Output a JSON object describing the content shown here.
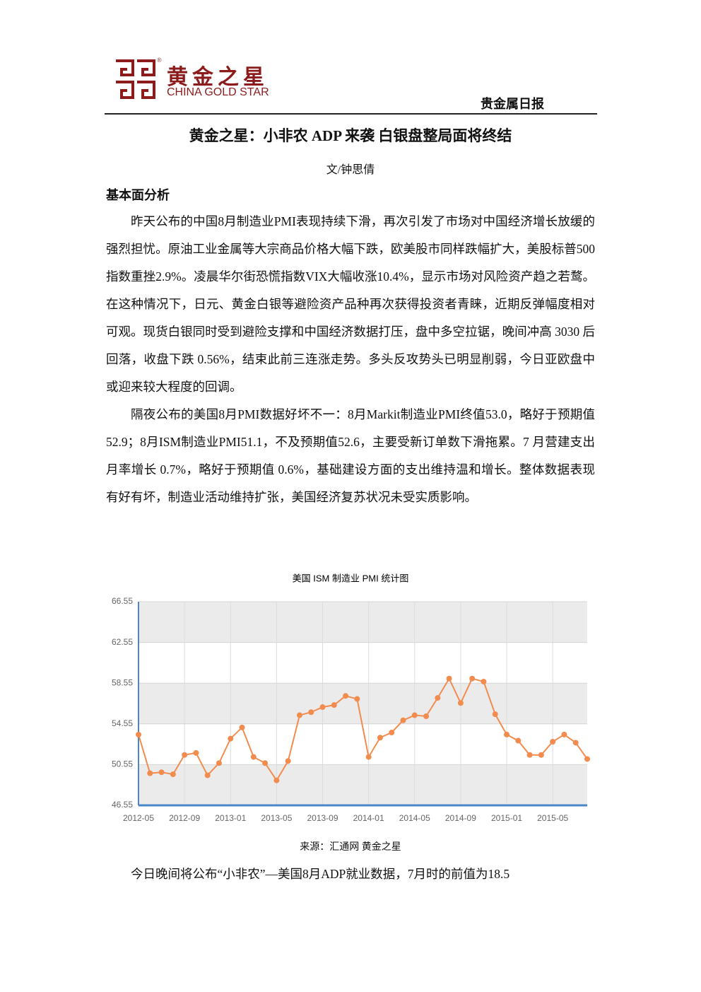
{
  "header": {
    "logo_cn": "黄金之星",
    "logo_reg": "®",
    "logo_en": "CHINA GOLD STAR",
    "report_type": "贵金属日报"
  },
  "article": {
    "title": "黄金之星：小非农 ADP 来袭 白银盘整局面将终结",
    "author": "文/钟思倩",
    "section_heading": "基本面分析",
    "paragraphs": [
      "昨天公布的中国8月制造业PMI表现持续下滑，再次引发了市场对中国经济增长放缓的强烈担忧。原油工业金属等大宗商品价格大幅下跌，欧美股市同样跌幅扩大，美股标普500指数重挫2.9%。凌晨华尔街恐慌指数VIX大幅收涨10.4%，显示市场对风险资产趋之若鹜。在这种情况下，日元、黄金白银等避险资产品种再次获得投资者青睐，近期反弹幅度相对可观。现货白银同时受到避险支撑和中国经济数据打压，盘中多空拉锯，晚间冲高 3030 后回落，收盘下跌 0.56%，结束此前三连涨走势。多头反攻势头已明显削弱，今日亚欧盘中或迎来较大程度的回调。",
      "隔夜公布的美国8月PMI数据好坏不一：8月Markit制造业PMI终值53.0，略好于预期值52.9；8月ISM制造业PMI51.1，不及预期值52.6，主要受新订单数下滑拖累。7 月营建支出月率增长 0.7%，略好于预期值 0.6%，基础建设方面的支出维持温和增长。整体数据表现有好有坏，制造业活动维持扩张，美国经济复苏状况未受实质影响。"
    ],
    "last_paragraph": "今日晚间将公布“小非农”—美国8月ADP就业数据，7月时的前值为18.5"
  },
  "chart_data": {
    "type": "line",
    "title": "美国 ISM 制造业 PMI 统计图",
    "categories": [
      "2012-05",
      null,
      null,
      null,
      "2012-09",
      null,
      null,
      null,
      "2013-01",
      null,
      null,
      null,
      "2013-05",
      null,
      null,
      null,
      "2013-09",
      null,
      null,
      null,
      "2014-01",
      null,
      null,
      null,
      "2014-05",
      null,
      null,
      null,
      "2014-09",
      null,
      null,
      null,
      "2015-01",
      null,
      null,
      null,
      "2015-05",
      null,
      null,
      null
    ],
    "values": [
      53.5,
      49.7,
      49.8,
      49.6,
      51.5,
      51.7,
      49.5,
      50.7,
      53.1,
      54.2,
      51.3,
      50.7,
      49.0,
      50.9,
      55.4,
      55.7,
      56.2,
      56.4,
      57.3,
      57.0,
      51.3,
      53.2,
      53.7,
      54.9,
      55.4,
      55.3,
      57.1,
      59.0,
      56.6,
      59.0,
      58.7,
      55.5,
      53.5,
      52.9,
      51.5,
      51.5,
      52.8,
      53.5,
      52.7,
      51.1
    ],
    "color": "#f28c4e",
    "ylim": [
      46.55,
      66.55
    ],
    "yticks": [
      46.55,
      50.55,
      54.55,
      58.55,
      62.55,
      66.55
    ],
    "grid": true
  },
  "chart_source": "来源：汇通网  黄金之星"
}
